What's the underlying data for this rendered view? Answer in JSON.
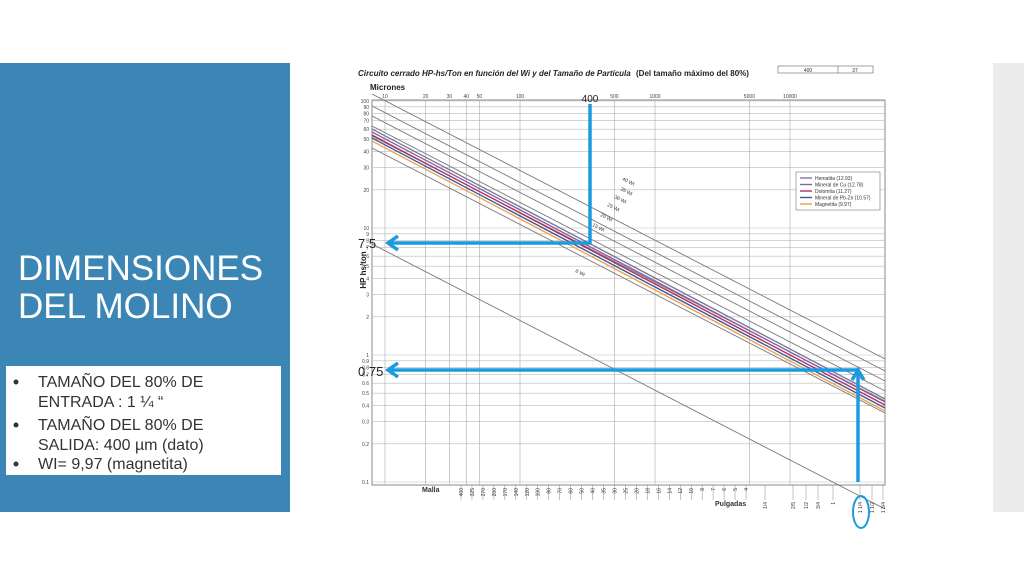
{
  "slide": {
    "title": "DIMENSIONES DEL MOLINO",
    "bullets": [
      "TAMAÑO DEL 80% DE ENTRADA : 1 ¼ “",
      "TAMAÑO DEL 80% DE SALIDA: 400 µm (dato)",
      "WI= 9,97 (magnetita)"
    ]
  },
  "figure": {
    "title": "Circuito cerrado HP-hs/Ton en función del Wi y del Tamaño de Partícula",
    "subtitle": "(Del tamaño máximo del 80%)",
    "header_table": [
      "400",
      "37"
    ],
    "x_label": "Micrones",
    "y_label": "HP hs/ton",
    "micron_ticks": [
      "10",
      "20",
      "30",
      "40",
      "50",
      "100",
      "500",
      "1000",
      "5000",
      "10000"
    ],
    "hp_ticks": [
      "100",
      "90",
      "80",
      "70",
      "60",
      "50",
      "40",
      "30",
      "20",
      "10",
      "9",
      "8",
      "7",
      "6",
      "5",
      "4",
      "3",
      "2",
      "1",
      "0.9",
      "0.8",
      "0.7",
      "0.6",
      "0.5",
      "0.4",
      "0.3",
      "0.2",
      "0.1"
    ],
    "mesh_label": "Malla",
    "mesh_ticks": [
      "400",
      "325",
      "270",
      "200",
      "170",
      "140",
      "120",
      "100",
      "80",
      "70",
      "60",
      "50",
      "40",
      "35",
      "30",
      "25",
      "20",
      "18",
      "16",
      "14",
      "12",
      "10",
      "8",
      "7",
      "6",
      "5",
      "4"
    ],
    "inch_label": "Pulgadas",
    "inch_ticks": [
      "1/4",
      "2/5",
      "1/2",
      "3/4",
      "1",
      "1 1/4",
      "1 1/2",
      "1 3/4"
    ],
    "wi_labels": [
      "40 Wi",
      "35 Wi",
      "30 Wi",
      "25 Wi",
      "20 Wi",
      "15 Wi",
      "8 Wi"
    ],
    "legend": [
      {
        "name": "Hematita (12.93)",
        "color": "#7a7a9a"
      },
      {
        "name": "Mineral de Cu (12.78)",
        "color": "#8a5fa0"
      },
      {
        "name": "Dolomita (11.27)",
        "color": "#b0305a"
      },
      {
        "name": "Mineral de Pb-Zn (10.57)",
        "color": "#3a5a9a"
      },
      {
        "name": "Magnetita (9.97)",
        "color": "#f0a050"
      }
    ],
    "annotations": {
      "size": "400",
      "hp_out": "7.5",
      "hp_in": "0.75"
    }
  }
}
